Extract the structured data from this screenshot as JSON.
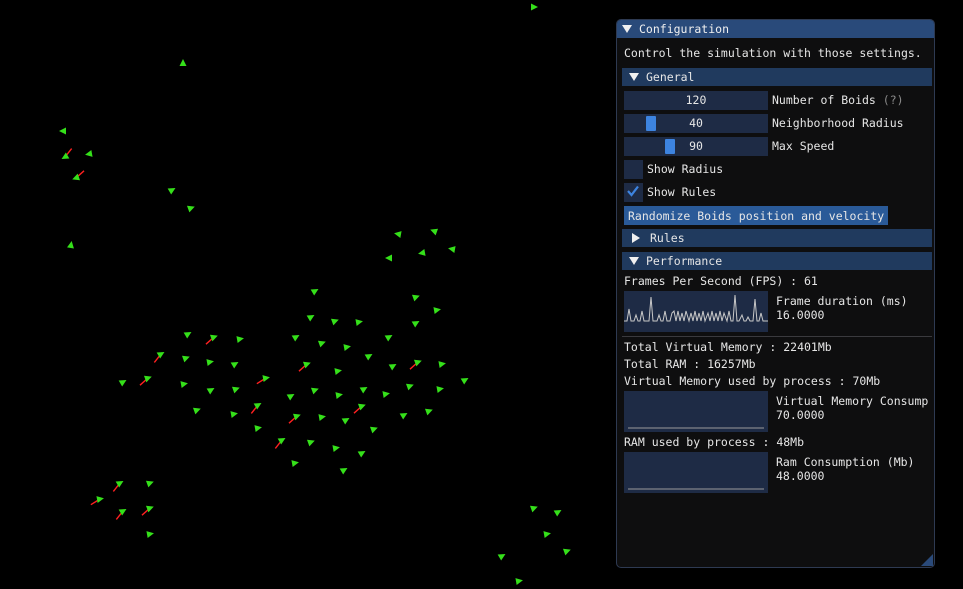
{
  "window": {
    "title": "Configuration",
    "description": "Control the simulation with those settings."
  },
  "general": {
    "header": "General",
    "boids_count": {
      "value": "120",
      "label": "Number of Boids",
      "help": "(?)"
    },
    "neighborhood_radius": {
      "value": "40",
      "label": "Neighborhood Radius"
    },
    "max_speed": {
      "value": "90",
      "label": "Max Speed"
    },
    "show_radius": {
      "label": "Show Radius",
      "checked": false
    },
    "show_rules": {
      "label": "Show Rules",
      "checked": true
    },
    "randomize_button": "Randomize Boids position and velocity"
  },
  "rules": {
    "header": "Rules"
  },
  "performance": {
    "header": "Performance",
    "fps_text": "Frames Per Second (FPS) : 61",
    "frame_plot": {
      "label": "Frame duration (ms)",
      "value": "16.0000"
    },
    "total_virtual_memory": "Total Virtual Memory : 22401Mb",
    "total_ram": "Total RAM : 16257Mb",
    "virtual_memory_used": "Virtual Memory used by process : 70Mb",
    "vm_plot": {
      "label": "Virtual Memory Consump",
      "value": "70.0000"
    },
    "ram_used": "RAM used by process : 48Mb",
    "ram_plot": {
      "label": "Ram Consumption (Mb)",
      "value": "48.0000"
    }
  },
  "colors": {
    "boid": "#35e01a",
    "rule_line": "#ff2020",
    "accent": "#3d84e0",
    "title_bar": "#294a7a",
    "header": "#203a5e",
    "frame_bg": "#1e2b45"
  },
  "icons": [
    "collapse-arrow-icon",
    "expand-arrow-icon",
    "checkmark-icon",
    "resize-grip-icon"
  ]
}
